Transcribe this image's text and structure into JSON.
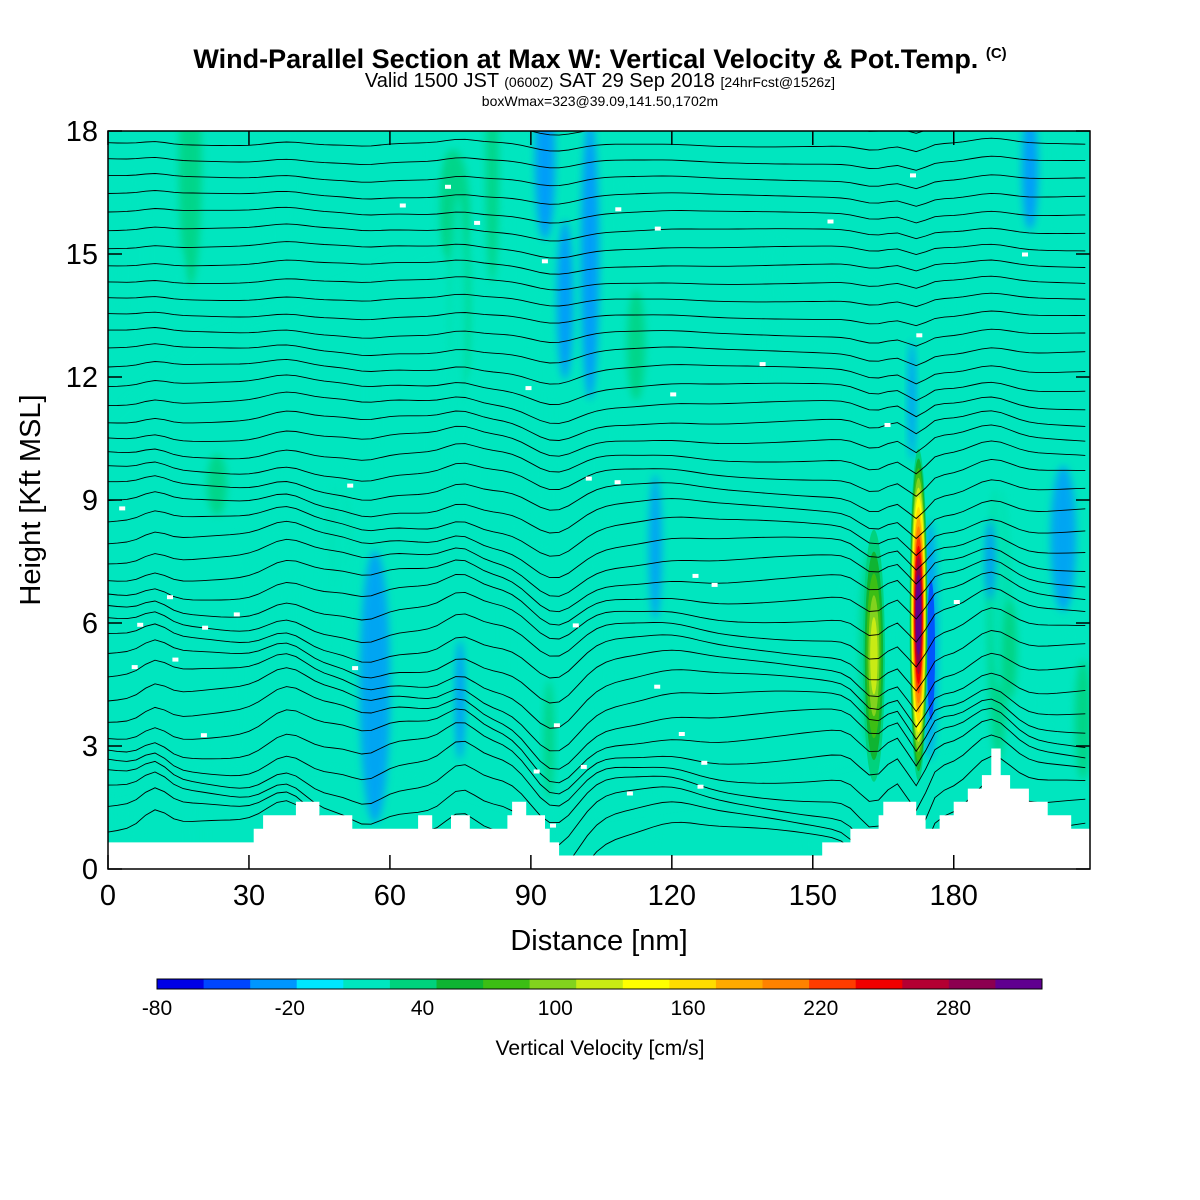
{
  "title": {
    "main": "Wind-Parallel Section at Max W: Vertical Velocity & Pot.Temp.",
    "main_suffix": "(C)",
    "valid_prefix": "Valid 1500 JST",
    "valid_utc": "(0600Z)",
    "valid_date": "SAT 29 Sep 2018",
    "valid_fcst": "[24hrFcst@1526z]",
    "box_info": "boxWmax=323@39.09,141.50,1702m"
  },
  "chart_data": {
    "type": "heatmap",
    "title": "Wind-Parallel Section at Max W: Vertical Velocity & Pot.Temp.",
    "xlabel": "Distance [nm]",
    "ylabel": "Height [Kft MSL]",
    "xlim": [
      0,
      209
    ],
    "ylim": [
      0,
      18
    ],
    "xticks": [
      0,
      30,
      60,
      90,
      120,
      150,
      180
    ],
    "yticks": [
      0,
      3,
      6,
      9,
      12,
      15,
      18
    ],
    "background_value_cm_s": 0,
    "field": "Vertical Velocity",
    "colorbar": {
      "label": "Vertical Velocity [cm/s]",
      "min": -80,
      "max": 320,
      "step": 20,
      "tick_labels": [
        -80,
        -20,
        40,
        100,
        160,
        220,
        280
      ],
      "colors": [
        "#0000e6",
        "#0046ff",
        "#0096ff",
        "#00e6ff",
        "#00e6bf",
        "#00d27d",
        "#0fb432",
        "#3cbe14",
        "#82d21e",
        "#c8eb14",
        "#ffff00",
        "#ffdc00",
        "#ffaa00",
        "#ff8200",
        "#ff3c00",
        "#f00000",
        "#b40032",
        "#8c0050",
        "#600090"
      ]
    },
    "updraft_maxima": [
      {
        "distance_nm": 172.5,
        "height_kft": 6.2,
        "w_cm_s": 323
      },
      {
        "distance_nm": 163,
        "height_kft": 5.2,
        "w_cm_s": 100
      }
    ],
    "terrain_kft": {
      "distance_nm": [
        0,
        25,
        31,
        33,
        40,
        45,
        52,
        62,
        66,
        69,
        71,
        73,
        77,
        80,
        85,
        86,
        89,
        93,
        94,
        96,
        120,
        130,
        140,
        150,
        152,
        158,
        164,
        165,
        172,
        174,
        177,
        180,
        183,
        186,
        188,
        190,
        192,
        196,
        200,
        205,
        209
      ],
      "height_kft": [
        0.65,
        0.65,
        0.98,
        1.31,
        1.64,
        1.31,
        0.98,
        0.98,
        1.31,
        0.98,
        0.98,
        1.31,
        0.98,
        0.98,
        1.31,
        1.64,
        1.31,
        0.98,
        0.65,
        0.33,
        0.33,
        0.33,
        0.33,
        0.33,
        0.65,
        0.98,
        1.31,
        1.64,
        1.31,
        0.98,
        1.31,
        1.64,
        1.96,
        2.29,
        2.94,
        2.29,
        1.96,
        1.64,
        1.31,
        0.98,
        0.98
      ]
    },
    "theta_label_count": 40
  }
}
